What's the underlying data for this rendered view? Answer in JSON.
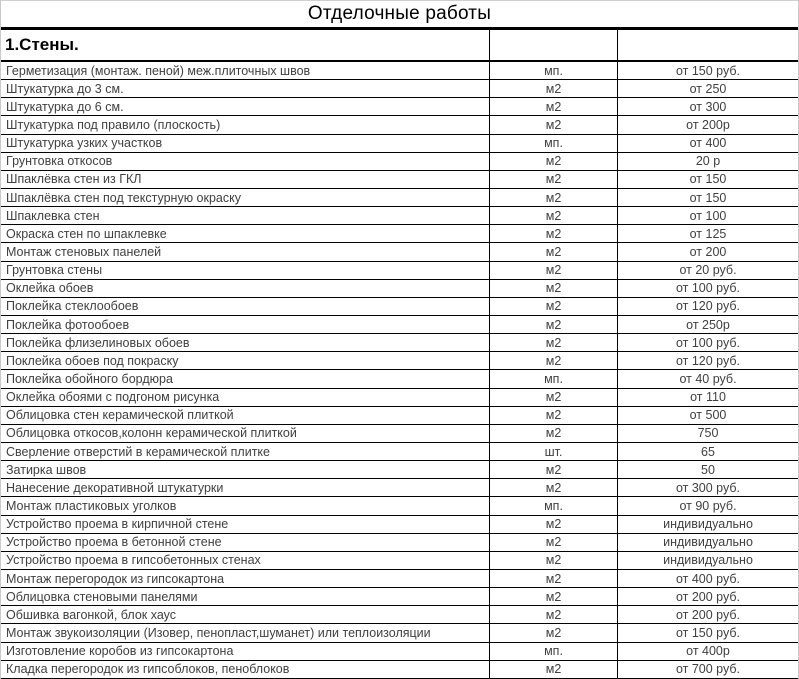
{
  "title": "Отделочные работы",
  "section": {
    "label": "1.Стены."
  },
  "colors": {
    "border": "#000000",
    "grid_edge": "#c9c9c9",
    "row_text": "#404040",
    "header_text": "#000000"
  },
  "rows": [
    {
      "name": "Герметизация (монтаж. пеной) меж.плиточных швов",
      "unit": "мп.",
      "price": "от 150 руб."
    },
    {
      "name": "Штукатурка до 3 см.",
      "unit": "м2",
      "price": "от 250"
    },
    {
      "name": "Штукатурка до 6 см.",
      "unit": "м2",
      "price": "от 300"
    },
    {
      "name": "Штукатурка под правило (плоскость)",
      "unit": "м2",
      "price": "от 200р"
    },
    {
      "name": "Штукатурка узких участков",
      "unit": "мп.",
      "price": "от 400"
    },
    {
      "name": "Грунтовка откосов",
      "unit": "м2",
      "price": "20 р"
    },
    {
      "name": "Шпаклёвка стен из ГКЛ",
      "unit": "м2",
      "price": "от 150"
    },
    {
      "name": "Шпаклёвка стен под текстурную окраску",
      "unit": "м2",
      "price": "от 150"
    },
    {
      "name": "Шпаклевка стен",
      "unit": "м2",
      "price": "от 100"
    },
    {
      "name": "Окраска стен по шпаклевке",
      "unit": "м2",
      "price": "от 125"
    },
    {
      "name": "Монтаж стеновых панелей",
      "unit": "м2",
      "price": "от 200"
    },
    {
      "name": "Грунтовка стены",
      "unit": "м2",
      "price": "от 20 руб."
    },
    {
      "name": "Оклейка обоев",
      "unit": "м2",
      "price": "от 100 руб."
    },
    {
      "name": "Поклейка стеклообоев",
      "unit": "м2",
      "price": "от 120 руб."
    },
    {
      "name": "Поклейка фотообоев",
      "unit": "м2",
      "price": "от 250р"
    },
    {
      "name": "Поклейка флизелиновых обоев",
      "unit": "м2",
      "price": "от 100 руб."
    },
    {
      "name": "Поклейка обоев под покраску",
      "unit": "м2",
      "price": "от 120 руб."
    },
    {
      "name": "Поклейка обойного бордюра",
      "unit": "мп.",
      "price": "от 40 руб."
    },
    {
      "name": "Оклейка обоями с подгоном рисунка",
      "unit": "м2",
      "price": "от 110"
    },
    {
      "name": "Облицовка стен керамической плиткой",
      "unit": "м2",
      "price": "от 500"
    },
    {
      "name": "Облицовка откосов,колонн керамической плиткой",
      "unit": "м2",
      "price": "750"
    },
    {
      "name": "Сверление отверстий в керамической плитке",
      "unit": "шт.",
      "price": "65"
    },
    {
      "name": "Затирка швов",
      "unit": "м2",
      "price": "50"
    },
    {
      "name": "Нанесение декоративной штукатурки",
      "unit": "м2",
      "price": "от 300 руб."
    },
    {
      "name": "Монтаж пластиковых уголков",
      "unit": "мп.",
      "price": "от 90 руб."
    },
    {
      "name": "Устройство проема в кирпичной стене",
      "unit": "м2",
      "price": "индивидуально"
    },
    {
      "name": "Устройство проема в бетонной стене",
      "unit": "м2",
      "price": "индивидуально"
    },
    {
      "name": "Устройство проема в гипсобетонных стенах",
      "unit": "м2",
      "price": "индивидуально"
    },
    {
      "name": "Монтаж перегородок из гипсокартона",
      "unit": "м2",
      "price": "от 400 руб."
    },
    {
      "name": "Облицовка стеновыми панелями",
      "unit": "м2",
      "price": "от 200 руб."
    },
    {
      "name": "Обшивка вагонкой, блок хаус",
      "unit": "м2",
      "price": "от 200 руб."
    },
    {
      "name": "Монтаж звукоизоляции (Изовер, пенопласт,шуманет) или теплоизоляции",
      "unit": "м2",
      "price": "от 150 руб."
    },
    {
      "name": "Изготовление коробов из гипсокартона",
      "unit": "мп.",
      "price": "от 400р"
    },
    {
      "name": "Кладка перегородок из гипсоблоков, пеноблоков",
      "unit": "м2",
      "price": "от 700 руб."
    }
  ]
}
